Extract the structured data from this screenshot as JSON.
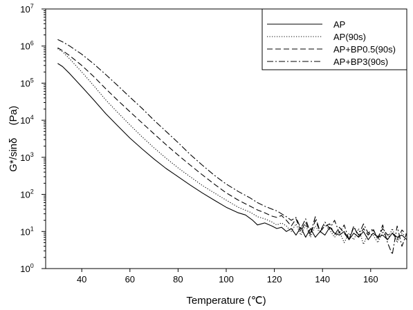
{
  "chart_data": {
    "type": "line",
    "xlabel": "Temperature (℃)",
    "ylabel_main": "G*/sinδ",
    "ylabel_unit": "(Pa)",
    "xlim": [
      25,
      175
    ],
    "ylim": [
      1,
      10000000
    ],
    "y_scale": "log",
    "x_ticks": [
      40,
      60,
      80,
      100,
      120,
      140,
      160
    ],
    "x_tick_labels": [
      "40",
      "60",
      "80",
      "100",
      "120",
      "140",
      "160"
    ],
    "y_ticks": [
      {
        "value": 1,
        "base": "10",
        "exp": "0"
      },
      {
        "value": 10,
        "base": "10",
        "exp": "1"
      },
      {
        "value": 100,
        "base": "10",
        "exp": "2"
      },
      {
        "value": 1000,
        "base": "10",
        "exp": "3"
      },
      {
        "value": 10000,
        "base": "10",
        "exp": "4"
      },
      {
        "value": 100000,
        "base": "10",
        "exp": "5"
      },
      {
        "value": 1000000,
        "base": "10",
        "exp": "6"
      },
      {
        "value": 10000000,
        "base": "10",
        "exp": "7"
      }
    ],
    "grid": false,
    "legend_position": "top-right",
    "series": [
      {
        "name": "AP",
        "dash": "solid",
        "points": [
          [
            30,
            340000
          ],
          [
            32,
            280000
          ],
          [
            35,
            180000
          ],
          [
            40,
            80000
          ],
          [
            45,
            35000
          ],
          [
            50,
            15000
          ],
          [
            55,
            7000
          ],
          [
            60,
            3300
          ],
          [
            65,
            1700
          ],
          [
            70,
            900
          ],
          [
            75,
            500
          ],
          [
            80,
            300
          ],
          [
            85,
            180
          ],
          [
            90,
            110
          ],
          [
            95,
            70
          ],
          [
            100,
            45
          ],
          [
            105,
            32
          ],
          [
            108,
            28
          ],
          [
            111,
            20
          ],
          [
            113,
            15
          ],
          [
            116,
            17
          ],
          [
            119,
            14
          ],
          [
            121,
            12
          ],
          [
            123,
            13
          ],
          [
            125,
            10
          ],
          [
            127,
            12
          ],
          [
            129,
            8
          ],
          [
            131,
            13
          ],
          [
            133,
            7
          ],
          [
            135,
            12
          ],
          [
            137,
            7
          ],
          [
            139,
            10
          ],
          [
            141,
            8
          ],
          [
            143,
            13
          ],
          [
            145,
            9
          ],
          [
            147,
            8
          ],
          [
            149,
            10
          ],
          [
            151,
            6
          ],
          [
            153,
            9
          ],
          [
            155,
            7
          ],
          [
            157,
            10
          ],
          [
            159,
            6
          ],
          [
            161,
            9
          ],
          [
            163,
            7
          ],
          [
            165,
            8
          ],
          [
            167,
            6
          ],
          [
            169,
            9
          ],
          [
            171,
            7
          ],
          [
            173,
            8
          ],
          [
            175,
            6
          ]
        ]
      },
      {
        "name": "AP(90s)",
        "dash": "dotted",
        "points": [
          [
            30,
            850000
          ],
          [
            32,
            700000
          ],
          [
            35,
            450000
          ],
          [
            40,
            200000
          ],
          [
            45,
            85000
          ],
          [
            50,
            35000
          ],
          [
            55,
            16000
          ],
          [
            60,
            7500
          ],
          [
            65,
            3600
          ],
          [
            70,
            1800
          ],
          [
            75,
            950
          ],
          [
            80,
            520
          ],
          [
            85,
            300
          ],
          [
            90,
            175
          ],
          [
            95,
            110
          ],
          [
            100,
            70
          ],
          [
            105,
            45
          ],
          [
            110,
            33
          ],
          [
            113,
            25
          ],
          [
            116,
            22
          ],
          [
            119,
            18
          ],
          [
            121,
            15
          ],
          [
            123,
            17
          ],
          [
            125,
            14
          ],
          [
            127,
            10
          ],
          [
            129,
            16
          ],
          [
            131,
            8
          ],
          [
            133,
            15
          ],
          [
            135,
            7
          ],
          [
            137,
            14
          ],
          [
            139,
            9
          ],
          [
            141,
            15
          ],
          [
            143,
            11
          ],
          [
            145,
            7
          ],
          [
            147,
            10
          ],
          [
            149,
            5
          ],
          [
            151,
            9
          ],
          [
            153,
            6
          ],
          [
            155,
            12
          ],
          [
            157,
            4.5
          ],
          [
            159,
            9
          ],
          [
            161,
            8
          ],
          [
            163,
            5
          ],
          [
            165,
            10
          ],
          [
            167,
            6
          ],
          [
            169,
            12
          ],
          [
            171,
            5
          ],
          [
            173,
            9
          ],
          [
            175,
            7
          ]
        ]
      },
      {
        "name": "AP+BP0.5(90s)",
        "dash": "dashed",
        "points": [
          [
            30,
            900000
          ],
          [
            32,
            750000
          ],
          [
            35,
            550000
          ],
          [
            40,
            300000
          ],
          [
            45,
            150000
          ],
          [
            50,
            70000
          ],
          [
            55,
            34000
          ],
          [
            60,
            17000
          ],
          [
            65,
            8500
          ],
          [
            70,
            4300
          ],
          [
            75,
            2200
          ],
          [
            80,
            1150
          ],
          [
            85,
            620
          ],
          [
            90,
            340
          ],
          [
            95,
            190
          ],
          [
            100,
            110
          ],
          [
            105,
            70
          ],
          [
            110,
            48
          ],
          [
            113,
            38
          ],
          [
            116,
            32
          ],
          [
            119,
            26
          ],
          [
            121,
            24
          ],
          [
            123,
            27
          ],
          [
            125,
            20
          ],
          [
            127,
            14
          ],
          [
            129,
            22
          ],
          [
            131,
            10
          ],
          [
            133,
            18
          ],
          [
            135,
            8
          ],
          [
            137,
            20
          ],
          [
            139,
            10
          ],
          [
            141,
            14
          ],
          [
            143,
            16
          ],
          [
            145,
            8
          ],
          [
            147,
            13
          ],
          [
            149,
            9
          ],
          [
            151,
            6
          ],
          [
            153,
            14
          ],
          [
            155,
            7
          ],
          [
            157,
            12
          ],
          [
            159,
            8
          ],
          [
            161,
            11
          ],
          [
            163,
            7
          ],
          [
            165,
            12
          ],
          [
            167,
            8
          ],
          [
            169,
            9
          ],
          [
            171,
            6
          ],
          [
            173,
            11
          ],
          [
            175,
            8
          ]
        ]
      },
      {
        "name": "AP+BP3(90s)",
        "dash": "dashdot",
        "points": [
          [
            30,
            1500000
          ],
          [
            32,
            1300000
          ],
          [
            35,
            1000000
          ],
          [
            40,
            600000
          ],
          [
            45,
            330000
          ],
          [
            50,
            170000
          ],
          [
            55,
            85000
          ],
          [
            60,
            42000
          ],
          [
            65,
            21000
          ],
          [
            70,
            10000
          ],
          [
            75,
            5000
          ],
          [
            80,
            2500
          ],
          [
            85,
            1200
          ],
          [
            90,
            620
          ],
          [
            95,
            330
          ],
          [
            100,
            190
          ],
          [
            105,
            120
          ],
          [
            110,
            80
          ],
          [
            113,
            60
          ],
          [
            116,
            48
          ],
          [
            119,
            40
          ],
          [
            121,
            36
          ],
          [
            123,
            30
          ],
          [
            125,
            25
          ],
          [
            127,
            20
          ],
          [
            129,
            24
          ],
          [
            131,
            12
          ],
          [
            133,
            22
          ],
          [
            135,
            9
          ],
          [
            137,
            25
          ],
          [
            139,
            10
          ],
          [
            141,
            18
          ],
          [
            143,
            12
          ],
          [
            145,
            20
          ],
          [
            147,
            9
          ],
          [
            149,
            15
          ],
          [
            151,
            6
          ],
          [
            153,
            13
          ],
          [
            155,
            8
          ],
          [
            157,
            16
          ],
          [
            159,
            9
          ],
          [
            161,
            12
          ],
          [
            163,
            6
          ],
          [
            165,
            15
          ],
          [
            167,
            5
          ],
          [
            169,
            2.4
          ],
          [
            171,
            14
          ],
          [
            173,
            4
          ],
          [
            175,
            9
          ]
        ]
      }
    ]
  }
}
